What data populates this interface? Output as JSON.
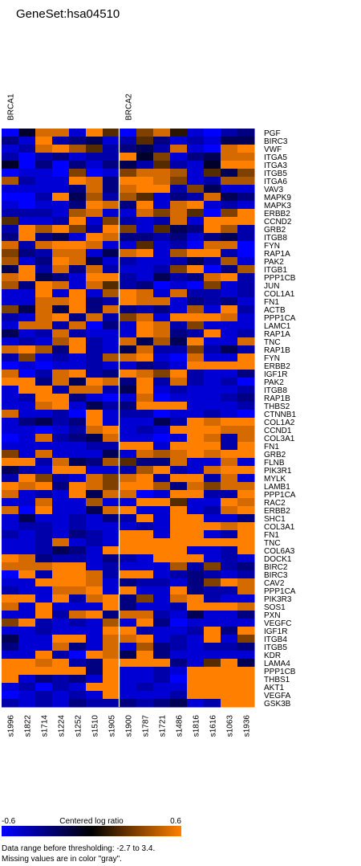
{
  "chart_data": {
    "type": "heatmap",
    "title": "GeneSet:hsa04510",
    "groups": [
      {
        "name": "BRCA1",
        "start": 0,
        "count": 7
      },
      {
        "name": "BRCA2",
        "start": 7,
        "count": 8
      }
    ],
    "samples": [
      "s1996",
      "s1822",
      "s1714",
      "s1224",
      "s1252",
      "s1510",
      "s1905",
      "s1900",
      "s1787",
      "s1721",
      "s1486",
      "s1816",
      "s1616",
      "s1063",
      "s1936"
    ],
    "genes": [
      "PGF",
      "BIRC3",
      "VWF",
      "ITGA5",
      "ITGA3",
      "ITGB5",
      "ITGA6",
      "VAV3",
      "MAPK9",
      "MAPK3",
      "ERBB2",
      "CCND2",
      "GRB2",
      "ITGB8",
      "FYN",
      "RAP1A",
      "PAK2",
      "ITGB1",
      "PPP1CB",
      "JUN",
      "COL1A1",
      "FN1",
      "ACTB",
      "PPP1CA",
      "LAMC1",
      "RAP1A",
      "TNC",
      "RAP1B",
      "FYN",
      "ERBB2",
      "IGF1R",
      "PAK2",
      "ITGB8",
      "RAP1B",
      "THBS2",
      "CTNNB1",
      "COL1A2",
      "CCND1",
      "COL3A1",
      "FN1",
      "GRB2",
      "FLNB",
      "PIK3R1",
      "MYLK",
      "LAMB1",
      "PPP1CA",
      "RAC2",
      "ERBB2",
      "SHC1",
      "COL3A1",
      "FN1",
      "TNC",
      "COL6A3",
      "DOCK1",
      "BIRC2",
      "BIRC3",
      "CAV2",
      "PPP1CA",
      "PIK3R3",
      "SOS1",
      "PXN",
      "VEGFC",
      "IGF1R",
      "ITGB4",
      "ITGB5",
      "KDR",
      "LAMA4",
      "PPP1CB",
      "THBS1",
      "AKT1",
      "VEGFA",
      "GSK3B"
    ],
    "values": [
      [
        -0.6,
        -0.1,
        0.5,
        0.5,
        -0.5,
        0.6,
        0.2,
        -0.6,
        0.3,
        0.5,
        0.1,
        -0.5,
        -0.6,
        -0.4,
        -0.3
      ],
      [
        -0.3,
        -0.5,
        0.6,
        -0.4,
        -0.3,
        -0.2,
        -0.5,
        -0.4,
        0.2,
        -0.3,
        -0.5,
        -0.4,
        -0.5,
        -0.2,
        -0.2
      ],
      [
        -0.5,
        -0.4,
        0.5,
        0.6,
        0.4,
        0.2,
        -0.4,
        -0.3,
        -0.2,
        -0.4,
        0.5,
        -0.5,
        -0.6,
        0.5,
        0.6
      ],
      [
        -0.4,
        -0.6,
        -0.4,
        -0.3,
        -0.5,
        -0.4,
        -0.4,
        0.6,
        -0.1,
        0.3,
        -0.5,
        -0.3,
        -0.2,
        0.5,
        0.5
      ],
      [
        -0.1,
        -0.6,
        -0.3,
        -0.6,
        -0.3,
        -0.5,
        -0.3,
        -0.2,
        -0.4,
        0.2,
        -0.4,
        -0.5,
        -0.1,
        0.6,
        0.6
      ],
      [
        -0.6,
        -0.5,
        -0.5,
        -0.6,
        0.3,
        -0.6,
        -0.5,
        0.3,
        0.5,
        0.5,
        0.4,
        -0.5,
        0.2,
        -0.2,
        0.3
      ],
      [
        0.4,
        -0.4,
        -0.5,
        -0.5,
        0.6,
        0.5,
        -0.3,
        0.6,
        0.6,
        0.5,
        0.3,
        -0.5,
        -0.4,
        0.4,
        0.4
      ],
      [
        -0.5,
        -0.5,
        -0.5,
        -0.5,
        -0.3,
        0.5,
        -0.3,
        0.5,
        0.6,
        0.6,
        -0.4,
        0.3,
        -0.2,
        -0.5,
        -0.5
      ],
      [
        -0.6,
        -0.6,
        -0.4,
        0.6,
        -0.2,
        0.4,
        -0.4,
        0.4,
        0.2,
        -0.5,
        -0.3,
        -0.4,
        0.5,
        -0.2,
        -0.3
      ],
      [
        -0.5,
        -0.6,
        -0.5,
        -0.5,
        -0.3,
        0.6,
        0.5,
        -0.3,
        0.6,
        -0.5,
        0.5,
        0.6,
        -0.5,
        -0.4,
        -0.5
      ],
      [
        -0.4,
        -0.4,
        -0.4,
        -0.5,
        0.4,
        0.5,
        -0.5,
        -0.5,
        0.5,
        0.3,
        0.5,
        0.2,
        -0.6,
        0.3,
        0.6
      ],
      [
        0.2,
        -0.5,
        -0.5,
        -0.4,
        0.6,
        -0.5,
        0.3,
        -0.4,
        -0.5,
        -0.4,
        0.5,
        -0.5,
        0.6,
        0.6,
        0.6
      ],
      [
        -0.4,
        0.6,
        0.4,
        0.6,
        0.3,
        -0.4,
        0.6,
        0.3,
        -0.5,
        0.2,
        -0.2,
        -0.3,
        0.6,
        0.4,
        -0.4
      ],
      [
        -0.3,
        0.6,
        -0.3,
        -0.2,
        -0.5,
        0.6,
        0.5,
        -0.3,
        -0.3,
        -0.4,
        -0.3,
        -0.5,
        -0.3,
        -0.2,
        -0.4
      ],
      [
        0.5,
        -0.4,
        0.5,
        0.6,
        0.6,
        0.5,
        -0.5,
        -0.5,
        0.2,
        -0.5,
        -0.4,
        -0.6,
        0.5,
        0.5,
        -0.6
      ],
      [
        0.3,
        -0.3,
        -0.4,
        0.5,
        0.5,
        -0.5,
        -0.2,
        0.5,
        0.6,
        -0.5,
        0.4,
        0.6,
        0.6,
        -0.4,
        -0.6
      ],
      [
        0.4,
        -0.5,
        -0.3,
        0.6,
        0.5,
        -0.2,
        -0.5,
        -0.4,
        -0.5,
        -0.5,
        -0.4,
        -0.2,
        -0.4,
        0.4,
        -0.5
      ],
      [
        -0.2,
        0.6,
        -0.4,
        0.5,
        -0.3,
        0.5,
        -0.4,
        -0.5,
        -0.5,
        -0.4,
        0.3,
        0.6,
        -0.6,
        -0.3,
        0.4
      ],
      [
        0.5,
        0.6,
        -0.2,
        -0.3,
        -0.5,
        0.6,
        0.6,
        -0.4,
        -0.5,
        -0.2,
        -0.4,
        -0.3,
        0.5,
        0.6,
        -0.4
      ],
      [
        0.4,
        -0.3,
        0.6,
        0.5,
        -0.5,
        0.5,
        0.2,
        -0.4,
        -0.3,
        -0.6,
        -0.5,
        -0.6,
        0.3,
        -0.5,
        -0.4
      ],
      [
        -0.5,
        -0.5,
        0.6,
        -0.5,
        0.6,
        -0.5,
        0.4,
        0.6,
        0.5,
        -0.5,
        0.5,
        -0.4,
        -0.4,
        -0.5,
        -0.4
      ],
      [
        -0.5,
        -0.5,
        0.5,
        0.5,
        0.6,
        -0.3,
        -0.4,
        0.6,
        0.5,
        0.5,
        -0.5,
        -0.3,
        -0.4,
        -0.3,
        -0.5
      ],
      [
        0.3,
        -0.2,
        0.5,
        -0.2,
        0.6,
        -0.3,
        0.5,
        -0.3,
        -0.4,
        -0.3,
        -0.5,
        0.4,
        -0.5,
        0.6,
        -0.4
      ],
      [
        -0.4,
        -0.5,
        0.5,
        0.6,
        -0.3,
        0.5,
        -0.4,
        0.3,
        0.5,
        -0.5,
        0.6,
        0.6,
        0.6,
        0.5,
        -0.5
      ],
      [
        -0.5,
        0.5,
        0.5,
        -0.4,
        0.5,
        -0.6,
        -0.3,
        -0.5,
        0.6,
        0.5,
        -0.4,
        0.3,
        -0.5,
        -0.5,
        -0.5
      ],
      [
        -0.2,
        -0.5,
        -0.4,
        0.5,
        -0.4,
        -0.5,
        -0.5,
        -0.5,
        0.6,
        0.5,
        -0.3,
        -0.4,
        0.6,
        -0.5,
        -0.4
      ],
      [
        -0.5,
        -0.4,
        -0.5,
        0.4,
        0.6,
        -0.4,
        -0.5,
        0.5,
        -0.2,
        0.4,
        -0.2,
        0.6,
        -0.5,
        -0.5,
        0.5
      ],
      [
        0.5,
        0.6,
        0.4,
        -0.3,
        0.6,
        -0.4,
        -0.5,
        -0.2,
        0.5,
        -0.4,
        -0.4,
        0.3,
        -0.4,
        -0.2,
        -0.4
      ],
      [
        -0.4,
        0.3,
        -0.5,
        -0.4,
        -0.5,
        -0.4,
        0.4,
        0.5,
        0.6,
        -0.5,
        -0.6,
        0.5,
        -0.5,
        -0.5,
        0.6
      ],
      [
        -0.6,
        -0.5,
        -0.6,
        -0.5,
        -0.5,
        -0.4,
        -0.5,
        -0.5,
        -0.3,
        -0.4,
        -0.5,
        0.6,
        0.6,
        0.6,
        0.6
      ],
      [
        0.5,
        -0.6,
        -0.4,
        0.5,
        0.6,
        -0.4,
        -0.3,
        0.6,
        0.5,
        0.3,
        0.6,
        -0.4,
        -0.5,
        -0.5,
        -0.3
      ],
      [
        0.6,
        0.6,
        -0.3,
        0.5,
        -0.2,
        0.6,
        0.5,
        -0.3,
        0.6,
        -0.4,
        0.5,
        -0.4,
        -0.5,
        -0.4,
        -0.6
      ],
      [
        -0.5,
        0.6,
        0.6,
        -0.4,
        0.5,
        0.5,
        -0.4,
        -0.2,
        0.6,
        -0.5,
        -0.4,
        -0.5,
        -0.5,
        -0.5,
        -0.4
      ],
      [
        -0.5,
        -0.4,
        0.6,
        0.6,
        -0.3,
        -0.5,
        -0.6,
        -0.5,
        0.5,
        -0.6,
        -0.5,
        -0.5,
        -0.5,
        -0.4,
        -0.3
      ],
      [
        -0.5,
        -0.5,
        0.5,
        0.6,
        -0.5,
        -0.2,
        -0.4,
        -0.3,
        0.6,
        0.6,
        0.6,
        -0.5,
        -0.5,
        -0.5,
        -0.4
      ],
      [
        0.5,
        -0.5,
        -0.5,
        -0.4,
        -0.6,
        0.6,
        -0.5,
        -0.4,
        -0.4,
        -0.6,
        -0.5,
        -0.5,
        -0.4,
        -0.5,
        -0.6
      ],
      [
        -0.5,
        -0.3,
        -0.2,
        -0.4,
        -0.3,
        0.6,
        -0.5,
        -0.5,
        -0.5,
        -0.2,
        -0.4,
        0.6,
        0.5,
        0.6,
        0.6
      ],
      [
        -0.5,
        -0.5,
        -0.6,
        -0.5,
        -0.4,
        0.5,
        0.6,
        -0.5,
        -0.4,
        -0.5,
        0.6,
        0.6,
        0.6,
        0.5,
        0.5
      ],
      [
        -0.6,
        -0.5,
        0.5,
        -0.4,
        -0.3,
        -0.2,
        0.5,
        -0.5,
        -0.5,
        -0.6,
        -0.5,
        0.6,
        0.5,
        -0.4,
        0.5
      ],
      [
        -0.5,
        -0.5,
        -0.5,
        -0.5,
        -0.5,
        -0.4,
        -0.4,
        0.6,
        0.6,
        -0.5,
        0.6,
        0.6,
        0.6,
        -0.4,
        0.6
      ],
      [
        0.3,
        -0.5,
        0.5,
        -0.5,
        -0.5,
        -0.5,
        -0.2,
        -0.5,
        0.5,
        0.4,
        0.5,
        0.6,
        0.5,
        0.6,
        0.6
      ],
      [
        0.6,
        0.6,
        -0.4,
        0.5,
        -0.2,
        -0.3,
        0.4,
        0.2,
        -0.3,
        -0.3,
        0.5,
        -0.5,
        -0.5,
        0.5,
        -0.5
      ],
      [
        -0.2,
        -0.4,
        -0.5,
        0.6,
        0.6,
        -0.5,
        -0.5,
        -0.4,
        0.4,
        0.6,
        -0.4,
        -0.5,
        0.5,
        0.6,
        0.6
      ],
      [
        -0.4,
        0.6,
        0.3,
        -0.4,
        -0.5,
        0.5,
        0.3,
        0.5,
        0.6,
        -0.4,
        0.6,
        0.6,
        -0.4,
        0.5,
        -0.5
      ],
      [
        0.6,
        0.5,
        0.6,
        -0.3,
        0.6,
        0.5,
        0.3,
        0.6,
        0.6,
        0.4,
        -0.3,
        0.5,
        0.3,
        0.5,
        0.5
      ],
      [
        0.5,
        -0.5,
        -0.4,
        -0.5,
        0.6,
        -0.2,
        0.5,
        0.5,
        -0.6,
        -0.5,
        0.6,
        0.6,
        -0.4,
        -0.4,
        0.6
      ],
      [
        -0.5,
        -0.5,
        0.5,
        -0.5,
        -0.5,
        0.4,
        -0.5,
        -0.5,
        0.6,
        0.6,
        0.2,
        -0.5,
        -0.5,
        0.6,
        0.5
      ],
      [
        0.5,
        -0.6,
        0.6,
        -0.5,
        -0.5,
        -0.2,
        0.5,
        0.6,
        -0.5,
        -0.5,
        0.6,
        -0.5,
        -0.4,
        0.5,
        0.6
      ],
      [
        -0.5,
        -0.2,
        -0.5,
        -0.5,
        -0.4,
        -0.5,
        -0.3,
        -0.4,
        0.6,
        -0.5,
        0.6,
        0.6,
        -0.5,
        -0.5,
        -0.3
      ],
      [
        -0.5,
        -0.4,
        -0.4,
        -0.5,
        -0.4,
        -0.5,
        -0.5,
        -0.5,
        -0.4,
        -0.5,
        0.6,
        0.6,
        0.6,
        0.5,
        0.6
      ],
      [
        -0.4,
        -0.5,
        -0.4,
        -0.5,
        -0.3,
        -0.4,
        -0.5,
        0.6,
        0.6,
        -0.5,
        0.6,
        0.6,
        -0.5,
        -0.4,
        0.6
      ],
      [
        -0.5,
        -0.5,
        -0.4,
        0.5,
        -0.5,
        -0.4,
        -0.5,
        0.6,
        0.6,
        0.6,
        0.6,
        0.6,
        0.6,
        0.6,
        0.6
      ],
      [
        -0.5,
        -0.5,
        -0.4,
        -0.2,
        -0.3,
        -0.5,
        0.6,
        0.6,
        0.6,
        0.6,
        0.6,
        -0.5,
        -0.5,
        -0.4,
        0.6
      ],
      [
        0.6,
        0.5,
        -0.3,
        -0.4,
        -0.4,
        -0.5,
        -0.3,
        -0.4,
        -0.5,
        0.6,
        0.6,
        0.6,
        -0.5,
        -0.4,
        -0.5
      ],
      [
        0.5,
        0.5,
        0.5,
        0.6,
        0.6,
        -0.5,
        -0.4,
        -0.5,
        -0.5,
        -0.5,
        0.4,
        -0.4,
        0.3,
        -0.4,
        -0.3
      ],
      [
        -0.6,
        0.6,
        -0.4,
        0.6,
        0.6,
        0.5,
        -0.4,
        0.6,
        0.6,
        -0.5,
        -0.4,
        -0.3,
        -0.4,
        -0.5,
        -0.4
      ],
      [
        -0.5,
        -0.5,
        0.6,
        0.6,
        0.6,
        0.5,
        -0.5,
        -0.3,
        -0.4,
        -0.4,
        -0.5,
        -0.3,
        0.3,
        0.6,
        0.5
      ],
      [
        -0.4,
        -0.5,
        -0.5,
        0.5,
        0.5,
        0.6,
        -0.5,
        0.6,
        -0.5,
        -0.5,
        0.6,
        -0.3,
        -0.4,
        -0.4,
        0.5
      ],
      [
        0.6,
        0.6,
        -0.5,
        0.6,
        -0.4,
        0.5,
        0.6,
        -0.3,
        0.3,
        -0.5,
        0.5,
        0.6,
        -0.4,
        -0.5,
        -0.5
      ],
      [
        0.5,
        -0.5,
        0.6,
        -0.5,
        -0.5,
        -0.5,
        0.6,
        -0.3,
        -0.5,
        -0.5,
        -0.4,
        0.6,
        0.6,
        0.6,
        0.5
      ],
      [
        -0.5,
        -0.5,
        0.6,
        -0.4,
        0.5,
        0.6,
        -0.3,
        0.5,
        0.5,
        -0.4,
        -0.5,
        -0.2,
        -0.5,
        -0.5,
        -0.3
      ],
      [
        0.3,
        0.6,
        -0.4,
        -0.5,
        -0.4,
        -0.5,
        0.4,
        -0.5,
        0.6,
        -0.3,
        -0.6,
        -0.5,
        -0.5,
        -0.5,
        -0.5
      ],
      [
        -0.5,
        -0.5,
        -0.4,
        -0.5,
        -0.5,
        -0.5,
        0.6,
        0.6,
        -0.4,
        -0.5,
        -0.5,
        -0.4,
        0.6,
        -0.3,
        0.6
      ],
      [
        -0.2,
        -0.5,
        -0.5,
        0.6,
        0.6,
        -0.5,
        0.5,
        0.5,
        0.6,
        -0.5,
        -0.4,
        -0.5,
        0.6,
        -0.5,
        0.3
      ],
      [
        -0.3,
        -0.5,
        -0.5,
        0.5,
        -0.3,
        -0.5,
        0.5,
        -0.5,
        0.4,
        -0.3,
        -0.4,
        -0.5,
        -0.4,
        -0.4,
        -0.3
      ],
      [
        -0.5,
        -0.5,
        0.6,
        -0.4,
        -0.6,
        0.6,
        0.5,
        -0.2,
        0.6,
        -0.3,
        -0.5,
        -0.5,
        -0.5,
        -0.5,
        -0.5
      ],
      [
        0.6,
        0.6,
        0.5,
        0.6,
        -0.4,
        -0.3,
        0.6,
        0.6,
        0.6,
        0.6,
        -0.3,
        -0.5,
        0.2,
        0.6,
        -0.2
      ],
      [
        0.6,
        0.6,
        0.6,
        0.6,
        0.6,
        -0.3,
        0.6,
        -0.5,
        -0.5,
        -0.4,
        -0.5,
        0.6,
        0.6,
        0.6,
        0.6
      ],
      [
        0.6,
        -0.5,
        -0.3,
        -0.4,
        -0.3,
        -0.5,
        0.6,
        -0.5,
        -0.5,
        -0.4,
        -0.6,
        0.6,
        0.6,
        0.6,
        0.6
      ],
      [
        -0.5,
        -0.4,
        -0.6,
        -0.4,
        -0.5,
        0.6,
        0.6,
        -0.5,
        -0.4,
        -0.5,
        -0.5,
        0.6,
        0.6,
        0.6,
        0.6
      ],
      [
        -0.6,
        -0.5,
        -0.4,
        -0.5,
        -0.4,
        -0.5,
        0.6,
        -0.5,
        -0.5,
        -0.5,
        -0.4,
        0.6,
        0.6,
        0.6,
        0.6
      ],
      [
        -0.4,
        -0.5,
        -0.4,
        -0.5,
        -0.3,
        -0.4,
        -0.4,
        -0.3,
        -0.4,
        -0.3,
        -0.2,
        -0.5,
        -0.4,
        0.6,
        0.6
      ]
    ],
    "colorbar": {
      "min_label": "-0.6",
      "max_label": "0.6",
      "label": "Centered log ratio",
      "low_color": "#0000ff",
      "mid_color": "#000000",
      "high_color": "#ff8000"
    },
    "notes": [
      "Data range before thresholding: -2.7 to 3.4.",
      "Missing values are in color \"gray\"."
    ]
  }
}
